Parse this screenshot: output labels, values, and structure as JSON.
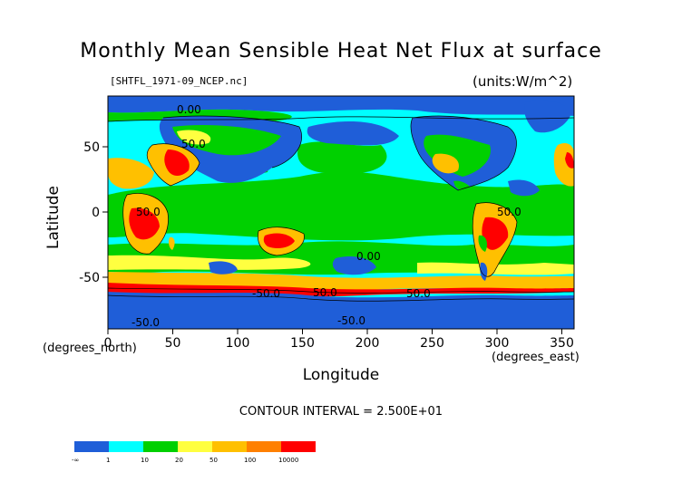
{
  "title": "Monthly Mean Sensible Heat Net Flux at surface",
  "filename": "[SHTFL_1971-09_NCEP.nc]",
  "units": "(units:W/m^2)",
  "axes": {
    "x_ticks": [
      "0",
      "50",
      "100",
      "150",
      "200",
      "250",
      "300",
      "350"
    ],
    "y_ticks": [
      "50",
      "0",
      "-50"
    ],
    "xlabel": "Longitude",
    "ylabel": "Latitude",
    "x_units": "(degrees_east)",
    "y_units": "(degrees_north)"
  },
  "contour_interval": "CONTOUR INTERVAL = 2.500E+01",
  "contour_labels": [
    "50.0",
    "-50.0",
    "0.00",
    "50.0",
    "50.0",
    "0.00",
    "50.0",
    "-50.0",
    "-50.0",
    "50.0"
  ],
  "colorbar": {
    "colors": [
      "#1f5ed8",
      "#00ffff",
      "#00d000",
      "#ffff40",
      "#ffc000",
      "#ff8000",
      "#ff0000"
    ],
    "labels": [
      "-∞",
      "1",
      "10",
      "20",
      "50",
      "100",
      "10000"
    ]
  }
}
